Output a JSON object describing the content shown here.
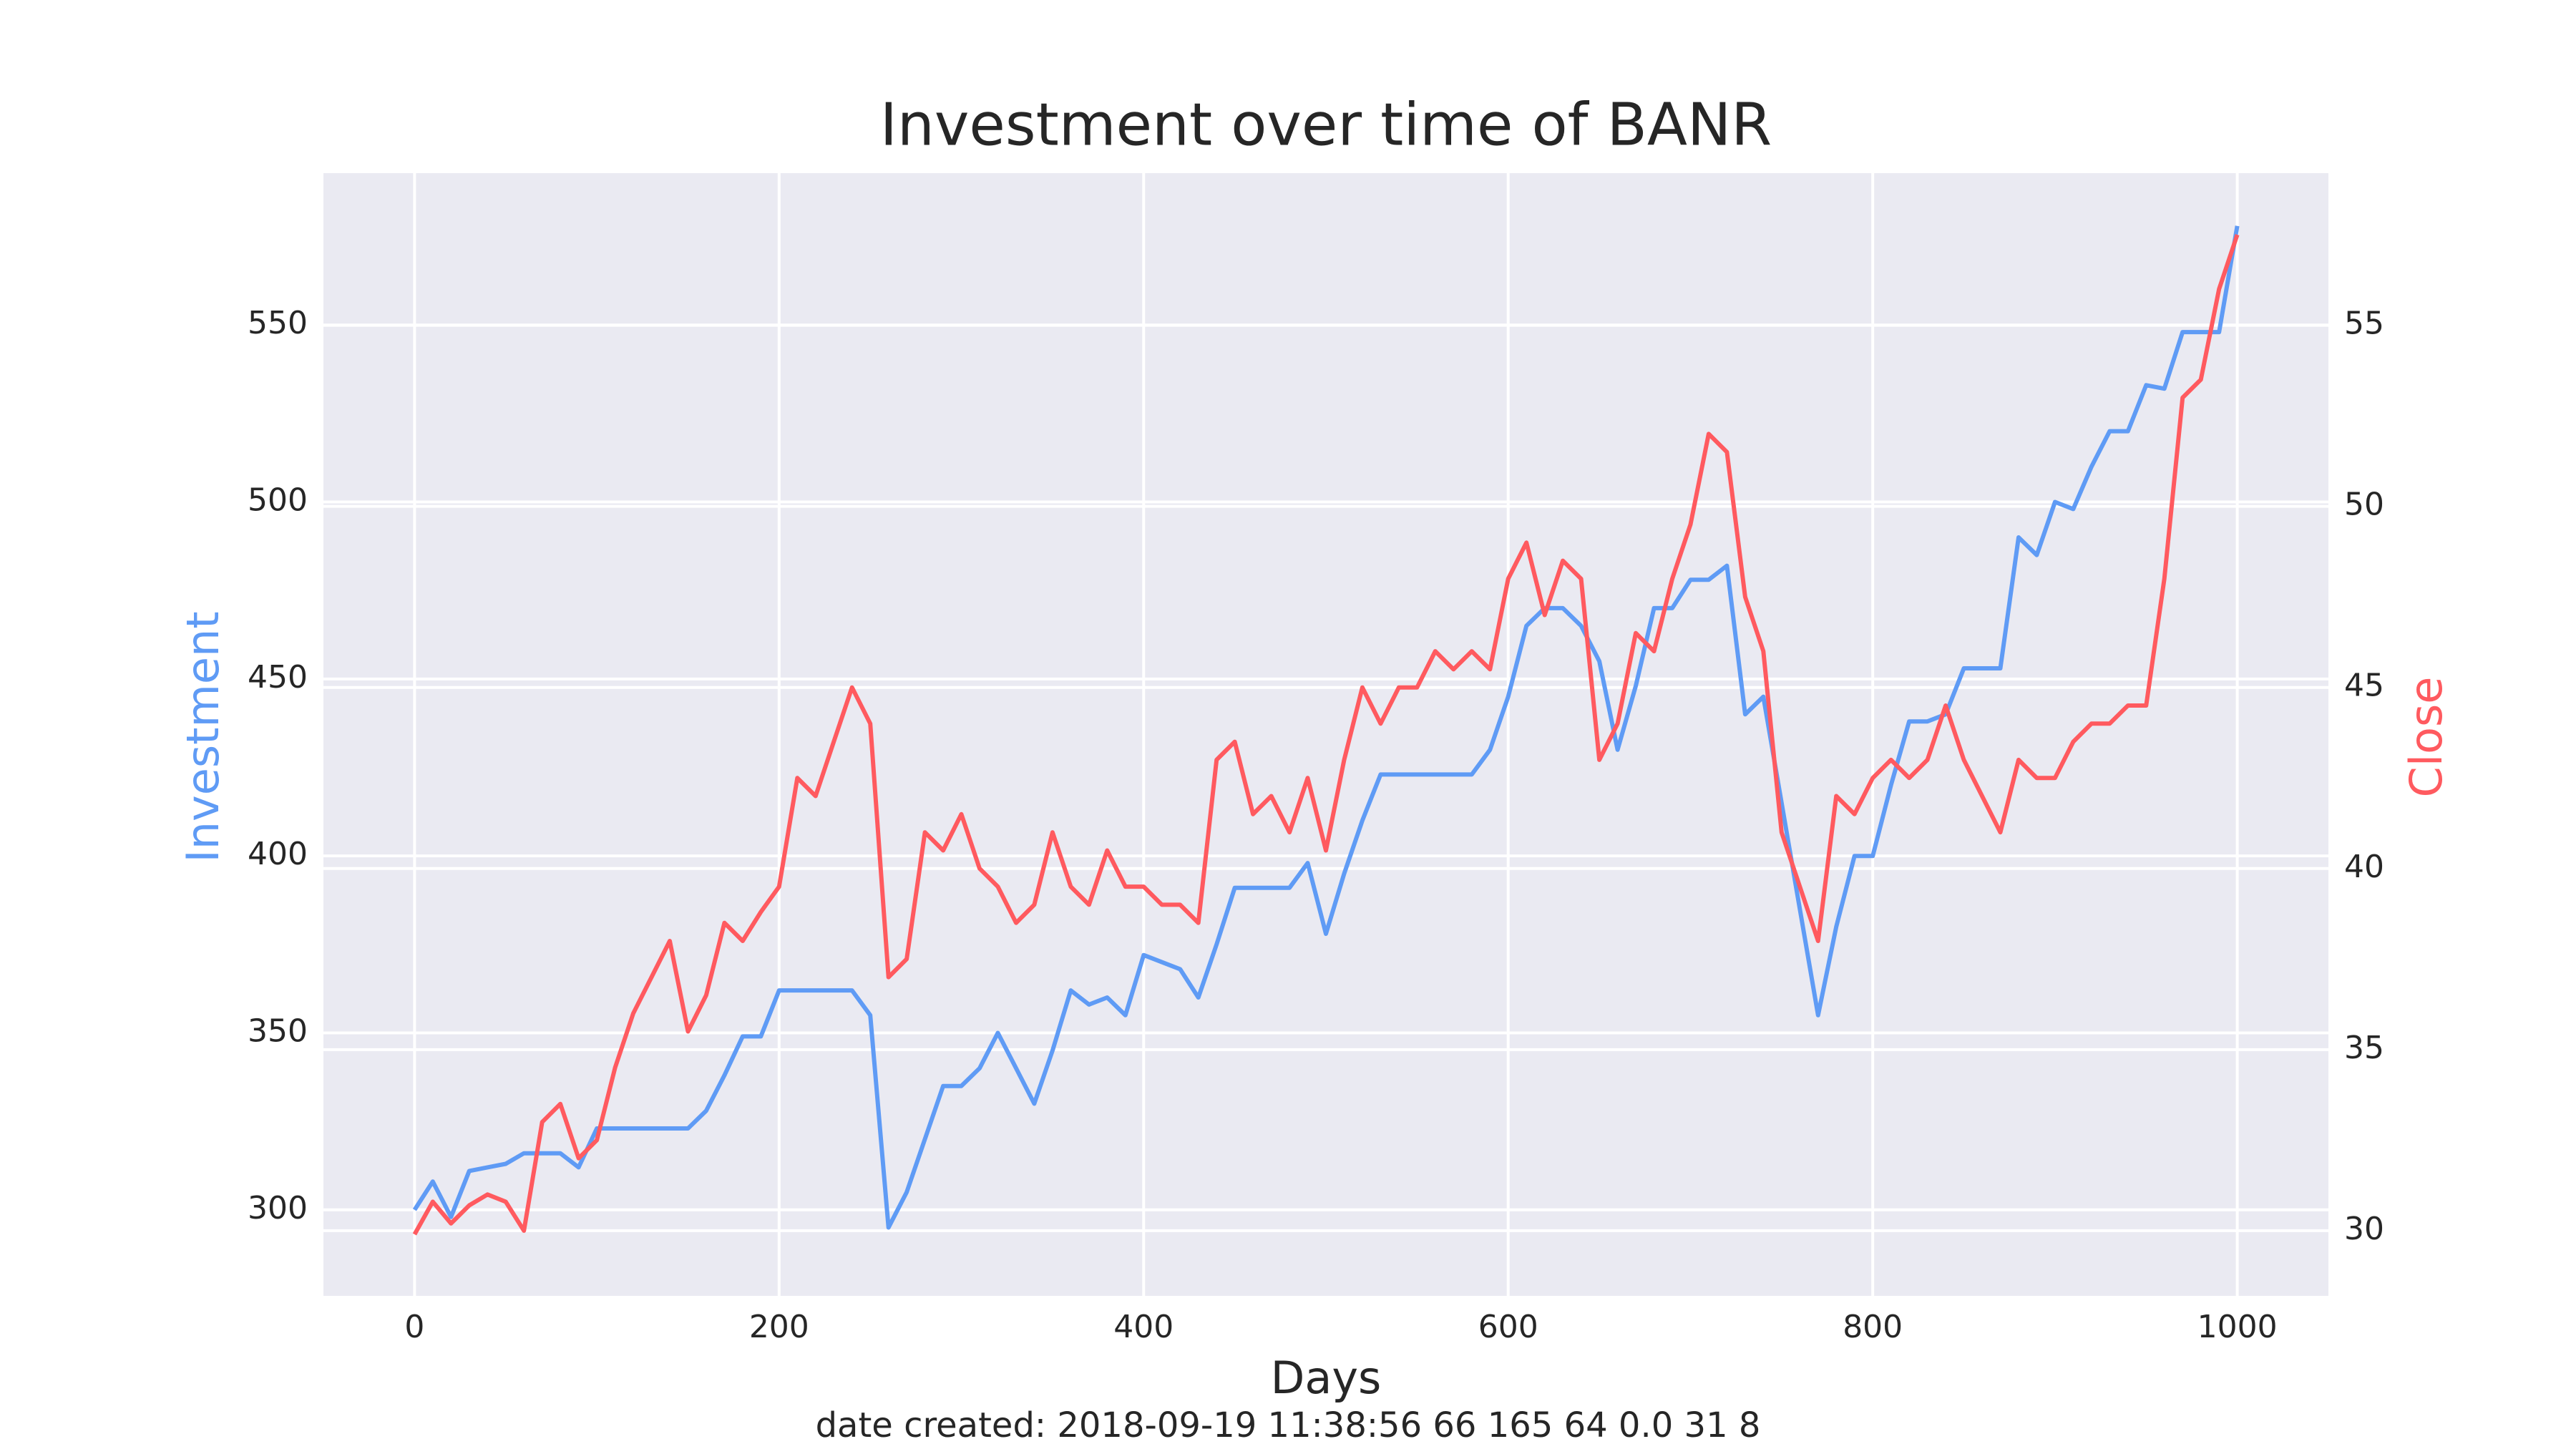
{
  "chart_data": {
    "type": "line",
    "title": "Investment over time of BANR",
    "xlabel": "Days",
    "ylabel": "Investment",
    "y2label": "Close",
    "footnote": "date created: 2018-09-19 11:38:56 66 165 64 0.0 31 8",
    "x": [
      0,
      10,
      20,
      30,
      40,
      50,
      60,
      70,
      80,
      90,
      100,
      110,
      120,
      130,
      140,
      150,
      160,
      170,
      180,
      190,
      200,
      210,
      220,
      230,
      240,
      250,
      260,
      270,
      280,
      290,
      300,
      310,
      320,
      330,
      340,
      350,
      360,
      370,
      380,
      390,
      400,
      410,
      420,
      430,
      440,
      450,
      460,
      470,
      480,
      490,
      500,
      510,
      520,
      530,
      540,
      550,
      560,
      570,
      580,
      590,
      600,
      610,
      620,
      630,
      640,
      650,
      660,
      670,
      680,
      690,
      700,
      710,
      720,
      730,
      740,
      750,
      760,
      770,
      780,
      790,
      800,
      810,
      820,
      830,
      840,
      850,
      860,
      870,
      880,
      890,
      900,
      910,
      920,
      930,
      940,
      950,
      960,
      970,
      980,
      990,
      1000
    ],
    "series": [
      {
        "name": "Investment",
        "color": "#5f9bf5",
        "axis": "y",
        "values": [
          300,
          308,
          298,
          311,
          312,
          313,
          316,
          316,
          316,
          312,
          323,
          323,
          323,
          323,
          323,
          323,
          328,
          338,
          349,
          349,
          362,
          362,
          362,
          362,
          362,
          355,
          295,
          305,
          320,
          335,
          335,
          340,
          350,
          340,
          330,
          345,
          362,
          358,
          360,
          355,
          372,
          370,
          368,
          360,
          375,
          391,
          391,
          391,
          391,
          398,
          378,
          395,
          410,
          423,
          423,
          423,
          423,
          423,
          423,
          430,
          445,
          465,
          470,
          470,
          465,
          455,
          430,
          448,
          470,
          470,
          478,
          478,
          482,
          440,
          445,
          415,
          385,
          355,
          380,
          400,
          400,
          420,
          438,
          438,
          440,
          453,
          453,
          453,
          490,
          485,
          500,
          498,
          510,
          520,
          520,
          533,
          532,
          548,
          548,
          548,
          578
        ]
      },
      {
        "name": "Close",
        "color": "#ff5a5f",
        "axis": "y2",
        "values": [
          29.9,
          30.8,
          30.2,
          30.7,
          31.0,
          30.8,
          30.0,
          33.0,
          33.5,
          32.0,
          32.5,
          34.5,
          36.0,
          37.0,
          38.0,
          35.5,
          36.5,
          38.5,
          38.0,
          38.8,
          39.5,
          42.5,
          42.0,
          43.5,
          45.0,
          44.0,
          37.0,
          37.5,
          41.0,
          40.5,
          41.5,
          40.0,
          39.5,
          38.5,
          39.0,
          41.0,
          39.5,
          39.0,
          40.5,
          39.5,
          39.5,
          39.0,
          39.0,
          38.5,
          43.0,
          43.5,
          41.5,
          42.0,
          41.0,
          42.5,
          40.5,
          43.0,
          45.0,
          44.0,
          45.0,
          45.0,
          46.0,
          45.5,
          46.0,
          45.5,
          48.0,
          49.0,
          47.0,
          48.5,
          48.0,
          43.0,
          44.0,
          46.5,
          46.0,
          48.0,
          49.5,
          52.0,
          51.5,
          47.5,
          46.0,
          41.0,
          39.5,
          38.0,
          42.0,
          41.5,
          42.5,
          43.0,
          42.5,
          43.0,
          44.5,
          43.0,
          42.0,
          41.0,
          43.0,
          42.5,
          42.5,
          43.5,
          44.0,
          44.0,
          44.5,
          44.5,
          48.0,
          53.0,
          53.5,
          56.0,
          57.5
        ]
      }
    ],
    "xlim": [
      -50,
      1050
    ],
    "xticks": [
      0,
      200,
      400,
      600,
      800,
      1000
    ],
    "ylim": [
      275.7,
      592.9
    ],
    "yticks": [
      300,
      350,
      400,
      450,
      500,
      550
    ],
    "y2lim": [
      28.2,
      59.2
    ],
    "y2ticks": [
      30,
      35,
      40,
      45,
      50,
      55
    ],
    "grid": true,
    "background": "#eaeaf2"
  }
}
